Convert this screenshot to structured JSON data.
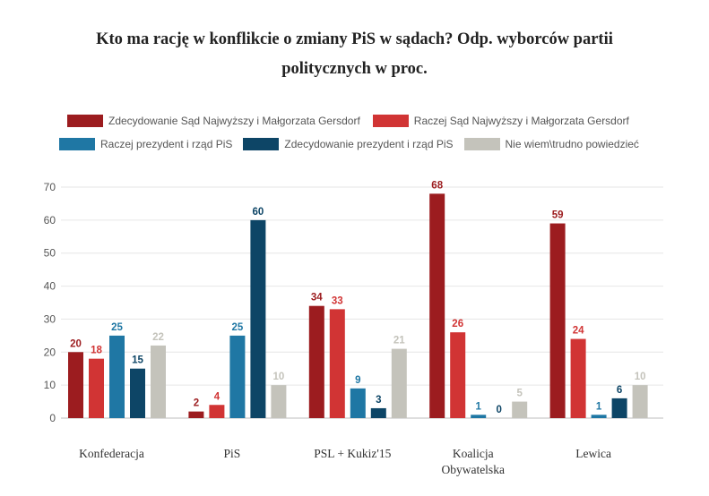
{
  "chart_data": {
    "type": "bar",
    "title": "Kto ma rację w konflikcie o zmiany PiS w sądach? Odp. wyborców partii politycznych w proc.",
    "categories": [
      "Konfederacja",
      "PiS",
      "PSL + Kukiz'15",
      "Koalicja Obywatelska",
      "Lewica"
    ],
    "category_lines": [
      [
        "Konfederacja"
      ],
      [
        "PiS"
      ],
      [
        "PSL + Kukiz'15"
      ],
      [
        "Koalicja",
        "Obywatelska"
      ],
      [
        "Lewica"
      ]
    ],
    "series": [
      {
        "name": "Zdecydowanie Sąd Najwyższy i Małgorzata Gersdorf",
        "color": "#9c1c1f",
        "values": [
          20,
          2,
          34,
          68,
          59
        ]
      },
      {
        "name": "Raczej Sąd Najwyższy i Małgorzata Gersdorf",
        "color": "#d13434",
        "values": [
          18,
          4,
          33,
          26,
          24
        ]
      },
      {
        "name": "Raczej prezydent i rząd PiS",
        "color": "#1f77a4",
        "values": [
          25,
          25,
          9,
          1,
          1
        ]
      },
      {
        "name": "Zdecydowanie prezydent i rząd PiS",
        "color": "#0d4566",
        "values": [
          15,
          60,
          3,
          0,
          6
        ]
      },
      {
        "name": "Nie wiem\\trudno powiedzieć",
        "color": "#c4c3bb",
        "values": [
          22,
          10,
          21,
          5,
          10
        ]
      }
    ],
    "ylim": [
      0,
      70
    ],
    "yticks": [
      0,
      10,
      20,
      30,
      40,
      50,
      60,
      70
    ],
    "grid": true,
    "legend_position": "top"
  }
}
